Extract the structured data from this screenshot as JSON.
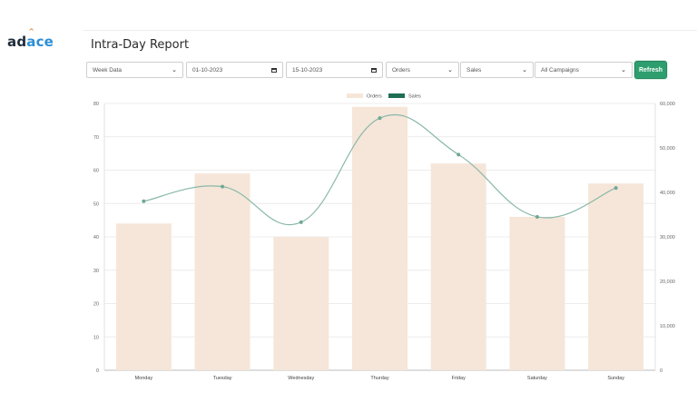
{
  "brand": {
    "logo_text_a": "ad",
    "logo_text_b": "ace",
    "logo_caret": "^"
  },
  "page": {
    "title": "Intra-Day Report"
  },
  "filters": {
    "period": "Week Data",
    "start_date": "01-10-2023",
    "end_date": "15-10-2023",
    "metric_primary": "Orders",
    "metric_secondary": "Sales",
    "campaigns": "All Campaigns",
    "refresh_label": "Refresh"
  },
  "chart_data": {
    "type": "bar",
    "categories": [
      "Monday",
      "Tuesday",
      "Wednesday",
      "Thurday",
      "Friday",
      "Saturday",
      "Sunday"
    ],
    "series": [
      {
        "name": "Orders",
        "type": "bar",
        "axis": "left",
        "color": "#f5e6d9",
        "values": [
          44,
          59,
          40,
          79,
          62,
          46,
          56
        ]
      },
      {
        "name": "Sales",
        "type": "line",
        "axis": "right",
        "color": "#8ab8a8",
        "values": [
          38000,
          41300,
          33300,
          56700,
          48500,
          34500,
          41000
        ]
      }
    ],
    "legend": [
      {
        "label": "Orders",
        "color": "#f5e6d9"
      },
      {
        "label": "Sales",
        "color": "#1f6e55"
      }
    ],
    "legend_position": "top-center",
    "y_left": {
      "min": 0,
      "max": 80,
      "ticks": [
        "0",
        "10",
        "20",
        "30",
        "40",
        "50",
        "60",
        "70",
        "80"
      ]
    },
    "y_right": {
      "min": 0,
      "max": 60000,
      "ticks": [
        "0",
        "10,000",
        "20,000",
        "30,000",
        "40,000",
        "50,000",
        "60,000"
      ]
    },
    "grid": true
  }
}
